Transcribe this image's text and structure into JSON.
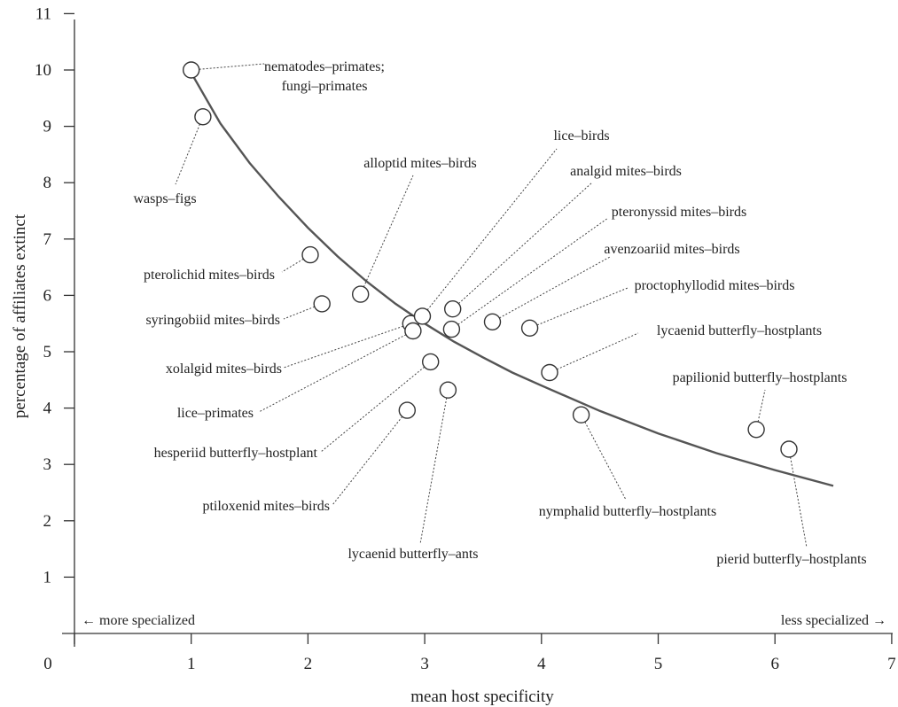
{
  "chart_data": {
    "type": "scatter",
    "xlabel": "mean host specificity",
    "ylabel": "percentage of affiliates extinct",
    "xlim": [
      0,
      7
    ],
    "ylim": [
      0,
      11
    ],
    "x_ticks": [
      "0",
      "1",
      "2",
      "3",
      "4",
      "5",
      "6",
      "7"
    ],
    "y_ticks": [
      "1",
      "2",
      "3",
      "4",
      "5",
      "6",
      "7",
      "8",
      "9",
      "10",
      "11"
    ],
    "grid": false,
    "notes": {
      "left": "← more specialized",
      "right": "less specialized →"
    },
    "points": [
      {
        "label": "nematodes–primates; fungi–primates",
        "lines": [
          "nematodes–primates;",
          "fungi–primates"
        ],
        "x": 1.0,
        "y": 10.0
      },
      {
        "label": "wasps–figs",
        "x": 1.1,
        "y": 9.17
      },
      {
        "label": "pterolichid mites–birds",
        "x": 2.02,
        "y": 6.72
      },
      {
        "label": "syringobiid mites–birds",
        "x": 2.12,
        "y": 5.85
      },
      {
        "label": "alloptid mites–birds",
        "x": 2.45,
        "y": 6.02
      },
      {
        "label": "xolalgid mites–birds",
        "x": 2.88,
        "y": 5.5
      },
      {
        "label": "lice–primates",
        "x": 2.9,
        "y": 5.37
      },
      {
        "label": "lice–birds",
        "x": 2.98,
        "y": 5.63
      },
      {
        "label": "ptiloxenid mites–birds",
        "x": 2.85,
        "y": 3.96
      },
      {
        "label": "hesperiid butterfly–hostplant",
        "x": 3.05,
        "y": 4.82
      },
      {
        "label": "lycaenid butterfly–ants",
        "x": 3.2,
        "y": 4.32
      },
      {
        "label": "pteronyssid mites–birds",
        "x": 3.23,
        "y": 5.4
      },
      {
        "label": "analgid mites–birds",
        "x": 3.24,
        "y": 5.76
      },
      {
        "label": "avenzoariid mites–birds",
        "x": 3.58,
        "y": 5.53
      },
      {
        "label": "proctophyllodid mites–birds",
        "x": 3.9,
        "y": 5.42
      },
      {
        "label": "lycaenid butterfly–hostplants",
        "x": 4.07,
        "y": 4.63
      },
      {
        "label": "nymphalid butterfly–hostplants",
        "x": 4.34,
        "y": 3.88
      },
      {
        "label": "papilionid butterfly–hostplants",
        "x": 5.84,
        "y": 3.62
      },
      {
        "label": "pierid butterfly–hostplants",
        "x": 6.12,
        "y": 3.27
      }
    ],
    "trend_curve": {
      "x": [
        1.0,
        1.25,
        1.5,
        1.75,
        2.0,
        2.25,
        2.5,
        2.75,
        3.0,
        3.25,
        3.5,
        3.75,
        4.0,
        4.5,
        5.0,
        5.5,
        6.0,
        6.5
      ],
      "y": [
        9.95,
        9.05,
        8.35,
        7.75,
        7.2,
        6.7,
        6.25,
        5.85,
        5.5,
        5.18,
        4.9,
        4.63,
        4.4,
        3.95,
        3.55,
        3.2,
        2.9,
        2.62
      ]
    }
  }
}
